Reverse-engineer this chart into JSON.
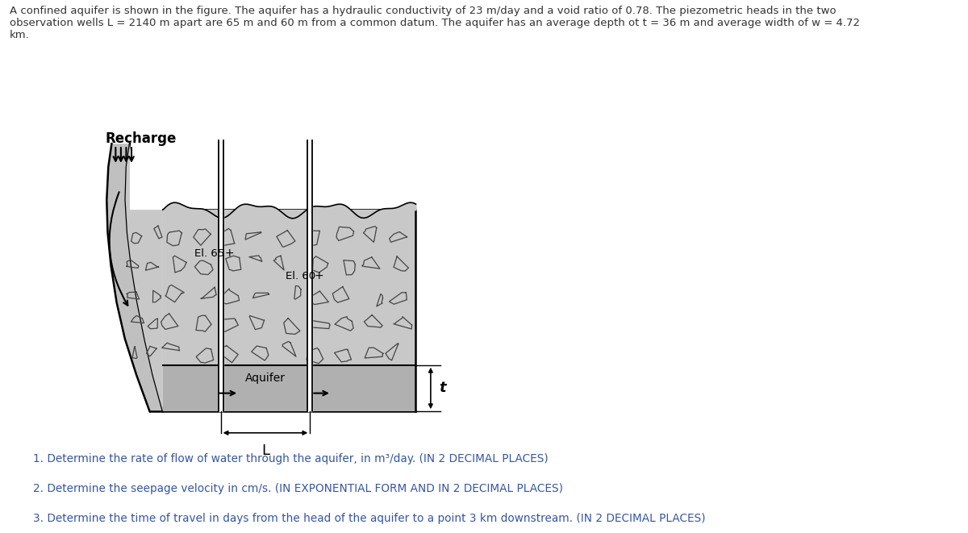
{
  "title_text": "A confined aquifer is shown in the figure. The aquifer has a hydraulic conductivity of 23 m/day and a void ratio of 0.78. The piezometric heads in the two\nobservation wells L = 2140 m apart are 65 m and 60 m from a common datum. The aquifer has an average depth ot t = 36 m and average width of w = 4.72\nkm.",
  "recharge_label": "Recharge",
  "el65_label": "El. 65",
  "el60_label": "El. 60",
  "aquifer_label": "Aquifer",
  "t_label": "t",
  "L_label": "L",
  "q1": "1. Determine the rate of flow of water through the aquifer, in m³/day. (IN 2 DECIMAL PLACES)",
  "q2": "2. Determine the seepage velocity in cm/s. (IN EXPONENTIAL FORM AND IN 2 DECIMAL PLACES)",
  "q3": "3. Determine the time of travel in days from the head of the aquifer to a point 3 km downstream. (IN 2 DECIMAL PLACES)",
  "bg_color": "#ffffff",
  "text_color": "#333333",
  "rock_fill": "#c8c8c8",
  "aquifer_fill": "#b0b0b0",
  "bowl_wall_fill": "#d0d0d0",
  "rock_edge": "#444444",
  "well_line": "#333333"
}
